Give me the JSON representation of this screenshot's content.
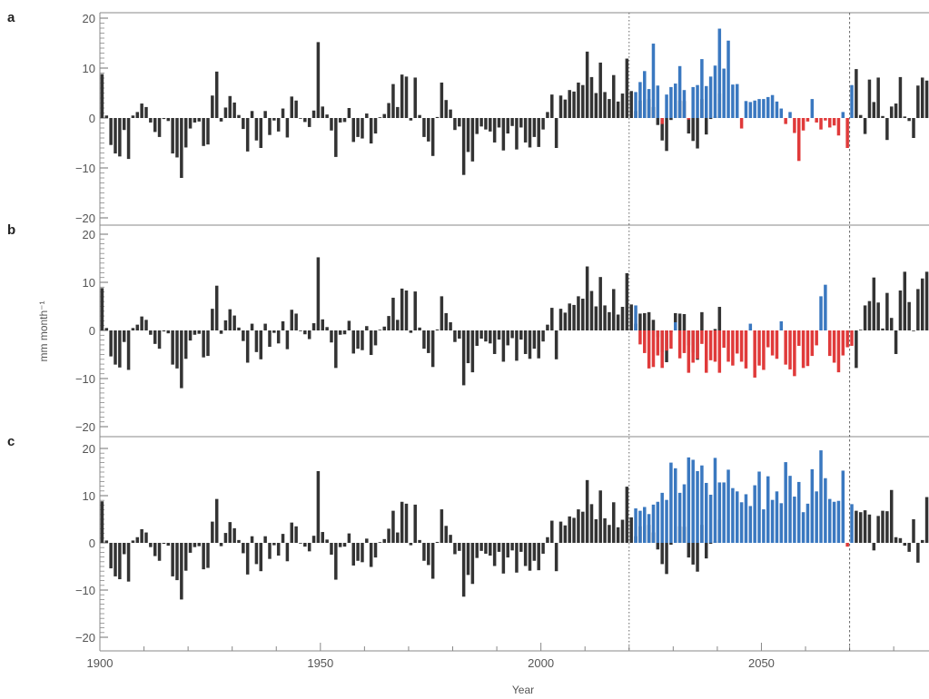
{
  "chart_data": {
    "type": "bar",
    "xlabel": "Year",
    "ylabel": "mm month⁻¹",
    "xlim": [
      1900,
      2088
    ],
    "ylim": [
      -21,
      21
    ],
    "x_ticks": [
      1900,
      1950,
      2000,
      2050
    ],
    "y_ticks": [
      -20,
      -10,
      0,
      10,
      20
    ],
    "reference_lines": [
      2020,
      2070
    ],
    "grid": false,
    "colors": {
      "observed": "#333333",
      "positive_projection": "#3a78c0",
      "negative_projection": "#e03a3a",
      "frame": "#888888",
      "reference_line": "#666666"
    },
    "observed_years": [
      1900,
      2020
    ],
    "observed_values": [
      8.8,
      0.5,
      -5.4,
      -7.1,
      -7.7,
      -2.4,
      -8.2,
      0.5,
      1.2,
      2.9,
      2.2,
      -0.9,
      -2.8,
      -3.8,
      -0.2,
      -0.6,
      -7.1,
      -7.9,
      -12.0,
      -5.9,
      -2.1,
      -0.9,
      -0.7,
      -5.6,
      -5.3,
      4.5,
      9.3,
      -0.7,
      2.1,
      4.4,
      3.1,
      0.6,
      -2.2,
      -6.7,
      1.4,
      -4.5,
      -6.0,
      1.4,
      -3.4,
      -0.5,
      -2.7,
      1.9,
      -3.9,
      4.3,
      3.5,
      -0.1,
      -0.8,
      -1.8,
      1.5,
      15.2,
      2.3,
      0.7,
      -2.5,
      -7.8,
      -0.9,
      -0.8,
      2.0,
      -4.8,
      -3.8,
      -4.1,
      0.9,
      -5.1,
      -3.1,
      0.1,
      0.8,
      3.0,
      6.8,
      2.2,
      8.7,
      8.3,
      -0.5,
      8.1,
      0.6,
      -3.8,
      -4.7,
      -7.6,
      0.2,
      7.1,
      3.6,
      1.7,
      -2.4,
      -1.7,
      -11.4,
      -6.8,
      -8.7,
      -3.2,
      -1.7,
      -2.3,
      -2.7,
      -4.9,
      -1.9,
      -6.5,
      -3.1,
      -1.6,
      -6.3,
      -1.9,
      -4.9,
      -5.9,
      -3.8,
      -5.8,
      -2.3,
      1.2,
      4.7,
      -6.0,
      4.5,
      3.7,
      5.6,
      5.3,
      7.1,
      6.6,
      13.3,
      8.2,
      5.0,
      11.1,
      5.2,
      3.8,
      8.6,
      3.3,
      4.9,
      11.9,
      5.4,
      1.4,
      3.5,
      3.6,
      3.8,
      2.2,
      -1.4,
      -4.5,
      -6.6,
      -0.4,
      3.6,
      3.5,
      3.4,
      -3.1,
      -4.6,
      -6.1,
      3.8,
      -3.3,
      -0.2,
      0.3,
      4.9
    ],
    "panels": [
      {
        "letter": "a",
        "projection_years": [
          2021,
          2087
        ],
        "projection_values": [
          5.2,
          7.2,
          9.4,
          5.8,
          14.9,
          6.5,
          -1.2,
          4.7,
          6.2,
          6.9,
          10.4,
          5.6,
          -0.3,
          6.2,
          6.6,
          11.8,
          6.4,
          8.3,
          10.5,
          17.9,
          9.9,
          15.5,
          6.7,
          6.8,
          -2.1,
          3.4,
          3.2,
          3.5,
          3.8,
          3.8,
          4.2,
          4.6,
          3.3,
          1.9,
          -1.2,
          1.2,
          -3.0,
          -8.6,
          -2.5,
          -0.7,
          3.8,
          -0.9,
          -2.3,
          -0.5,
          -1.9,
          -1.5,
          -3.5,
          1.2,
          -6.0,
          6.6,
          9.8,
          0.6,
          -3.2,
          7.7,
          3.2,
          8.1,
          0.4,
          -4.4,
          2.3,
          2.9,
          8.2,
          0.3,
          -0.6,
          -4.0,
          6.5,
          8.1,
          7.5
        ]
      },
      {
        "letter": "b",
        "projection_years": [
          2021,
          2087
        ],
        "projection_values": [
          5.2,
          -2.9,
          -4.7,
          -7.9,
          -7.6,
          -5.2,
          -7.8,
          -4.2,
          -3.8,
          1.7,
          -5.8,
          -4.7,
          -8.8,
          -6.7,
          -5.9,
          -2.8,
          -8.8,
          -6.2,
          -6.5,
          -8.8,
          -3.6,
          -6.5,
          -7.3,
          -4.8,
          -6.5,
          -7.9,
          1.4,
          -9.8,
          -7.3,
          -8.2,
          -3.5,
          -5.2,
          -5.9,
          1.9,
          -7.1,
          -8.1,
          -9.5,
          -3.2,
          -7.8,
          -7.4,
          -5.3,
          -3.1,
          7.1,
          9.5,
          -5.3,
          -6.7,
          -8.7,
          -5.2,
          -3.5,
          -3.2,
          -7.8,
          0.1,
          5.2,
          6.1,
          11.0,
          5.8,
          0.4,
          7.8,
          2.6,
          -4.9,
          8.3,
          12.2,
          5.9,
          -0.1,
          8.6,
          10.8,
          12.2
        ]
      },
      {
        "letter": "c",
        "projection_years": [
          2021,
          2087
        ],
        "projection_values": [
          7.3,
          6.8,
          7.6,
          6.1,
          8.1,
          8.7,
          10.6,
          9.1,
          17.0,
          15.8,
          10.6,
          12.4,
          18.1,
          17.6,
          15.2,
          16.4,
          12.7,
          10.2,
          18.0,
          12.8,
          12.8,
          15.5,
          11.6,
          10.9,
          8.6,
          10.3,
          7.8,
          12.2,
          15.1,
          7.1,
          14.1,
          9.1,
          10.9,
          8.4,
          17.1,
          14.2,
          9.8,
          12.9,
          6.5,
          8.3,
          15.6,
          10.9,
          19.6,
          13.7,
          9.3,
          8.7,
          8.9,
          15.3,
          -0.8,
          8.2,
          6.8,
          6.5,
          6.9,
          6.0,
          -1.6,
          5.7,
          6.8,
          6.7,
          11.2,
          1.2,
          1.0,
          -0.6,
          -1.9,
          5.0,
          -4.2,
          0.6,
          9.7
        ]
      }
    ]
  }
}
